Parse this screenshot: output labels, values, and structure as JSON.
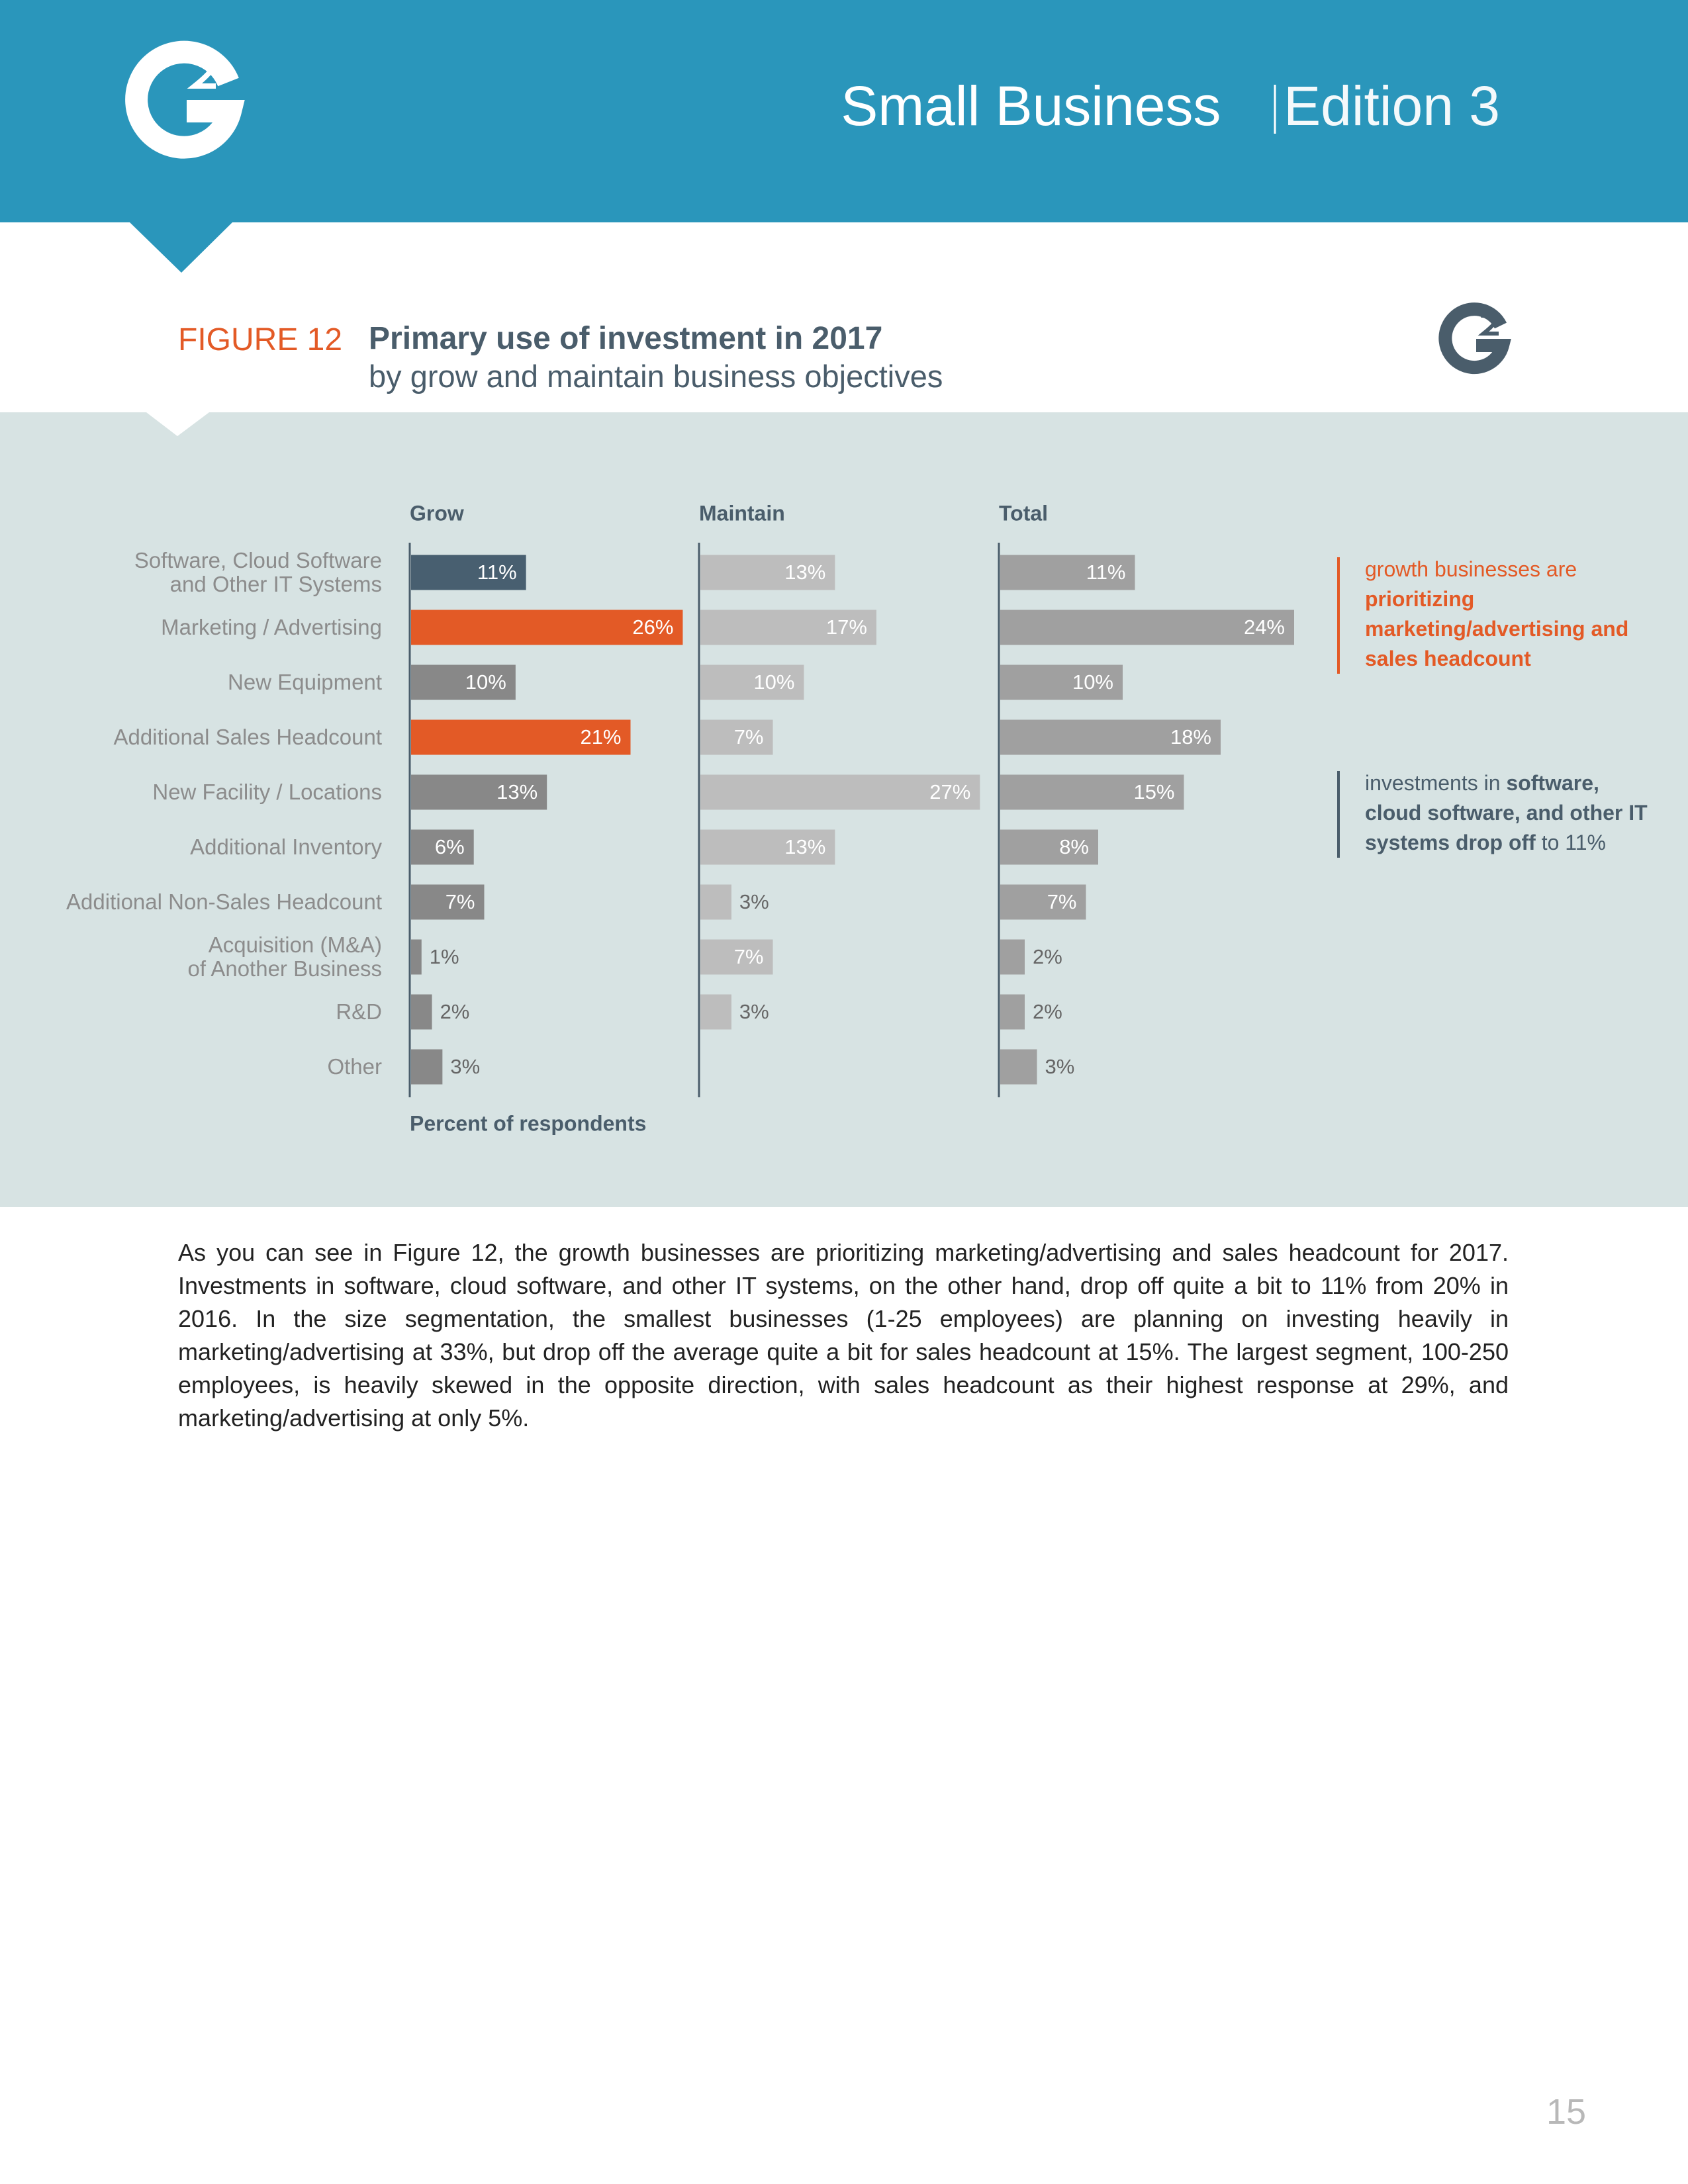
{
  "header": {
    "title": "Small Business",
    "edition": "Edition 3"
  },
  "figure": {
    "label": "FIGURE 12",
    "title": "Primary use of investment in 2017",
    "subtitle": "by grow and maintain business objectives"
  },
  "chart_data": {
    "type": "bar",
    "orientation": "horizontal",
    "categories": [
      "Software, Cloud Software\nand Other IT Systems",
      "Marketing / Advertising",
      "New Equipment",
      "Additional Sales Headcount",
      "New Facility / Locations",
      "Additional Inventory",
      "Additional Non-Sales Headcount",
      "Acquisition (M&A)\nof Another Business",
      "R&D",
      "Other"
    ],
    "xlim": [
      0,
      28
    ],
    "xlabel": "Percent of respondents",
    "series": [
      {
        "name": "Grow",
        "colors": [
          "#485f70",
          "#e35a26",
          "#888888",
          "#e35a26",
          "#888888",
          "#888888",
          "#888888",
          "#888888",
          "#888888",
          "#888888"
        ],
        "values": [
          11,
          26,
          10,
          21,
          13,
          6,
          7,
          1,
          2,
          3
        ],
        "value_labels": [
          "11%",
          "26%",
          "10%",
          "21%",
          "13%",
          "6%",
          "7%",
          "1%",
          "2%",
          "3%"
        ]
      },
      {
        "name": "Maintain",
        "color": "#bdbdbd",
        "values": [
          13,
          17,
          10,
          7,
          27,
          13,
          3,
          7,
          3,
          null
        ],
        "value_labels": [
          "13%",
          "17%",
          "10%",
          "7%",
          "27%",
          "13%",
          "3%",
          "7%",
          "3%",
          null
        ]
      },
      {
        "name": "Total",
        "color": "#a0a0a0",
        "values": [
          11,
          24,
          10,
          18,
          15,
          8,
          7,
          2,
          2,
          3
        ],
        "value_labels": [
          "11%",
          "24%",
          "10%",
          "18%",
          "15%",
          "8%",
          "7%",
          "2%",
          "2%",
          "3%"
        ]
      }
    ],
    "annotations": [
      {
        "color": "#e35a26",
        "parts": [
          {
            "text": "growth businesses are ",
            "bold": false
          },
          {
            "text": "prioritizing marketing/advertising and sales headcount",
            "bold": true
          }
        ]
      },
      {
        "color": "#4a5d6b",
        "parts": [
          {
            "text": "investments in ",
            "bold": false
          },
          {
            "text": "software, cloud software, and other IT systems drop off",
            "bold": true
          },
          {
            "text": " to 11%",
            "bold": false
          }
        ]
      }
    ]
  },
  "body": "As you can see in Figure 12, the growth businesses are prioritizing marketing/advertising and sales headcount for 2017. Investments in software, cloud software, and other IT systems, on the other hand, drop off quite a bit to 11% from 20% in 2016. In the size segmentation, the smallest businesses (1-25 employees) are planning on investing heavily in marketing/advertising at 33%, but drop off the average quite a bit for sales headcount at 15%. The largest segment, 100-250 employees, is heavily skewed in the opposite direction, with sales headcount as their highest response at 29%, and marketing/advertising at only 5%.",
  "page_number": "15"
}
